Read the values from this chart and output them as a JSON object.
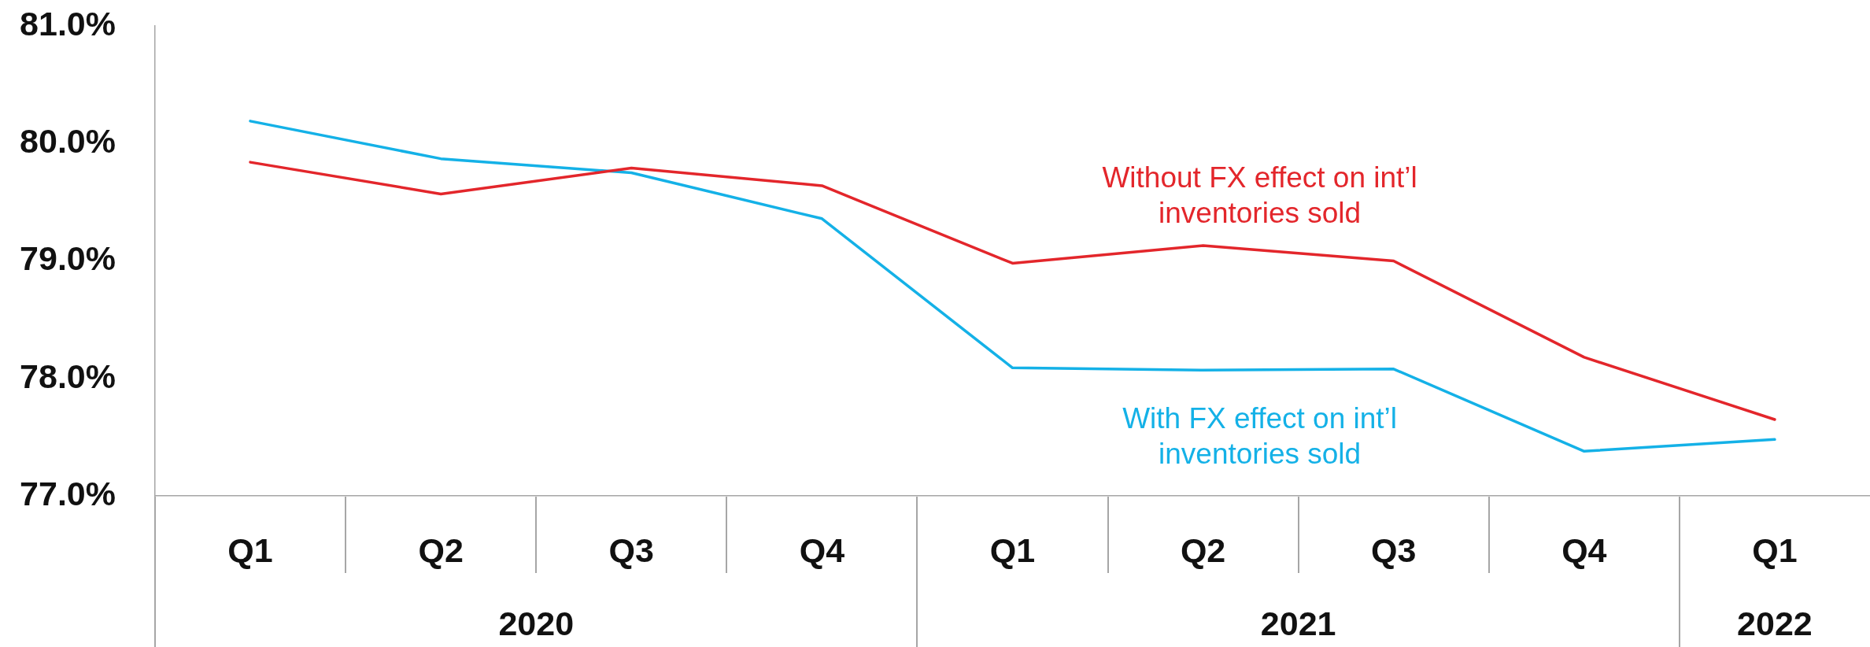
{
  "chart_data": {
    "type": "line",
    "categories": [
      "Q1",
      "Q2",
      "Q3",
      "Q4",
      "Q1",
      "Q2",
      "Q3",
      "Q4",
      "Q1"
    ],
    "series": [
      {
        "name": "Without FX effect on int’l inventories sold",
        "color": "#e3262b",
        "values": [
          79.84,
          79.57,
          79.79,
          79.64,
          78.98,
          79.13,
          79.0,
          78.18,
          77.65
        ]
      },
      {
        "name": "With FX effect on int’l inventories sold",
        "color": "#14b1e7",
        "values": [
          80.19,
          79.87,
          79.75,
          79.36,
          78.09,
          78.07,
          78.08,
          77.38,
          77.48
        ]
      }
    ],
    "ylim": [
      77,
      81
    ],
    "yticks": [
      {
        "value": 77,
        "label": "77.0%"
      },
      {
        "value": 78,
        "label": "78.0%"
      },
      {
        "value": 79,
        "label": "79.0%"
      },
      {
        "value": 80,
        "label": "80.0%"
      },
      {
        "value": 81,
        "label": "81.0%"
      }
    ],
    "annotations": [
      "2020",
      "2021",
      "2022"
    ],
    "marker": "none",
    "line_style": "solid"
  }
}
